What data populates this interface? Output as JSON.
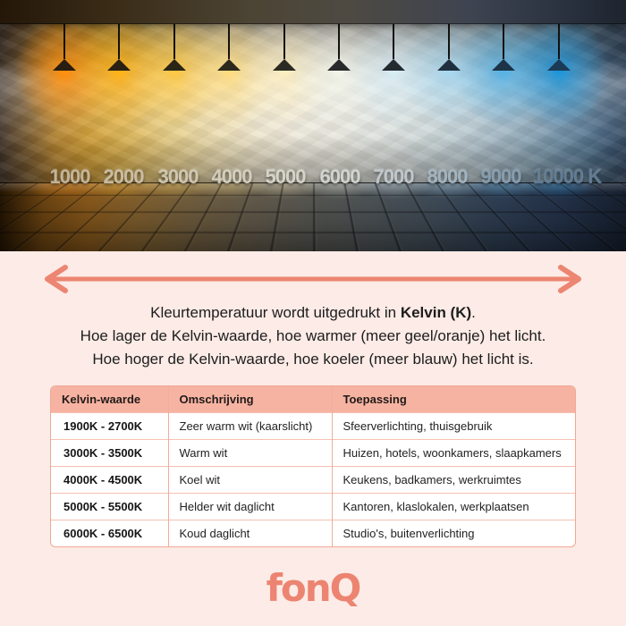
{
  "photo": {
    "lamps": [
      {
        "label": "1000",
        "light": "#ff9010",
        "shade": "#281d10"
      },
      {
        "label": "2000",
        "light": "#ffb218",
        "shade": "#2a2112"
      },
      {
        "label": "3000",
        "light": "#ffc945",
        "shade": "#2b2516"
      },
      {
        "label": "4000",
        "light": "#ffdc80",
        "shade": "#2c281c"
      },
      {
        "label": "5000",
        "light": "#fdeec0",
        "shade": "#2b2a23"
      },
      {
        "label": "6000",
        "light": "#f2f4e8",
        "shade": "#27292a"
      },
      {
        "label": "7000",
        "light": "#d8ecf4",
        "shade": "#232a30"
      },
      {
        "label": "8000",
        "light": "#a8d8f0",
        "shade": "#20303e"
      },
      {
        "label": "9000",
        "light": "#58b4e6",
        "shade": "#1d3348"
      },
      {
        "label": "10000 K",
        "light": "#1e96da",
        "shade": "#1b3a55"
      }
    ]
  },
  "explainer": {
    "line1_pre": "Kleurtemperatuur wordt uitgedrukt in ",
    "line1_bold": "Kelvin (K)",
    "line1_post": ".",
    "line2": "Hoe lager de Kelvin-waarde, hoe warmer (meer geel/oranje) het licht.",
    "line3": "Hoe hoger de Kelvin-waarde, hoe koeler (meer blauw) het licht is."
  },
  "table": {
    "columns": [
      "Kelvin-waarde",
      "Omschrijving",
      "Toepassing"
    ],
    "rows": [
      [
        "1900K - 2700K",
        "Zeer warm wit (kaarslicht)",
        "Sfeerverlichting, thuisgebruik"
      ],
      [
        "3000K - 3500K",
        "Warm wit",
        "Huizen, hotels, woonkamers, slaapkamers"
      ],
      [
        "4000K - 4500K",
        "Koel wit",
        "Keukens, badkamers, werkruimtes"
      ],
      [
        "5000K - 5500K",
        "Helder wit daglicht",
        "Kantoren, klaslokalen, werkplaatsen"
      ],
      [
        "6000K - 6500K",
        "Koud daglicht",
        "Studio's, buitenverlichting"
      ]
    ]
  },
  "footer": {
    "logo_text": "fonQ"
  },
  "colors": {
    "background_pink": "#fcebe6",
    "accent_coral": "#ec8571",
    "table_header_bg": "#f7b3a2",
    "table_border": "#f2ad9b",
    "text_dark": "#1d1d1d",
    "warmest_light": "#ff9010",
    "coolest_light": "#1e96da"
  }
}
